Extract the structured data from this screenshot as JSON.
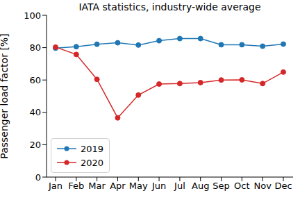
{
  "chart_data": {
    "type": "line",
    "title": "IATA statistics, industry-wide average",
    "y_label": "Passenger load factor [%]",
    "categories": [
      "Jan",
      "Feb",
      "Mar",
      "Apr",
      "May",
      "Jun",
      "Jul",
      "Aug",
      "Sep",
      "Oct",
      "Nov",
      "Dec"
    ],
    "series": [
      {
        "name": "2019",
        "color": "#1f77b4",
        "marker": "circle",
        "values": [
          79.7,
          80.6,
          82.1,
          83.0,
          81.6,
          84.3,
          85.6,
          85.6,
          81.8,
          81.8,
          80.9,
          82.2
        ]
      },
      {
        "name": "2020",
        "color": "#d62728",
        "marker": "circle",
        "values": [
          80.3,
          75.8,
          60.4,
          36.6,
          50.7,
          57.5,
          57.8,
          58.4,
          60.0,
          60.1,
          57.8,
          64.9
        ]
      }
    ],
    "ylim": [
      0,
      100
    ],
    "yticks": [
      0,
      20,
      40,
      60,
      80,
      100
    ],
    "grid": false,
    "legend": "lower left"
  }
}
